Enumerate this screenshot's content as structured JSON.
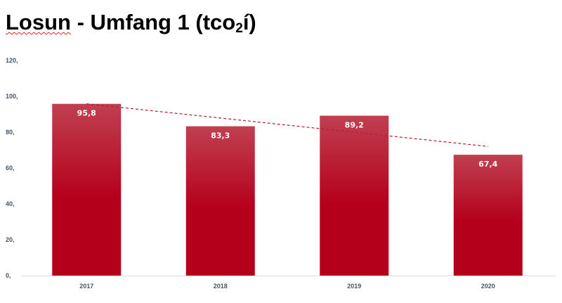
{
  "title": {
    "main": "Losun - Umfang 1 (tco",
    "subscript": "2",
    "suffix": "í)"
  },
  "chart_data": {
    "type": "bar",
    "title": "Losun - Umfang 1 (tco₂í)",
    "categories": [
      "2017",
      "2018",
      "2019",
      "2020"
    ],
    "values": [
      95.8,
      83.3,
      89.2,
      67.4
    ],
    "value_labels": [
      "95,8",
      "83,3",
      "89,2",
      "67,4"
    ],
    "ylim": [
      0,
      120
    ],
    "yticks": [
      0,
      20,
      40,
      60,
      80,
      100,
      120
    ],
    "ytick_labels": [
      "0,",
      "20,",
      "40,",
      "60,",
      "80,",
      "100,",
      "120,"
    ],
    "trendline": {
      "type": "linear",
      "style": "dashed",
      "color": "#b02030"
    },
    "grid": false,
    "legend": "none",
    "colors": {
      "bar_top": "#c04050",
      "bar_bottom": "#b5001c",
      "axis_text": "#44546a"
    }
  }
}
